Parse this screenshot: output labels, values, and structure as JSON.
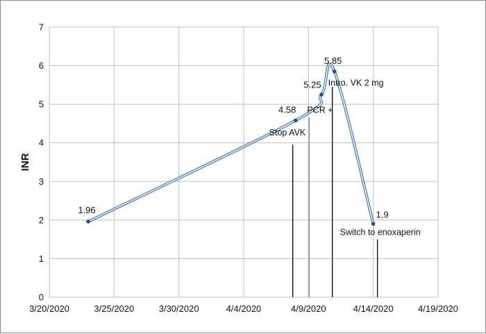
{
  "chart_data": {
    "type": "line",
    "title": "",
    "xlabel": "",
    "ylabel": "INR",
    "ylim": [
      0,
      7
    ],
    "yticks": [
      0,
      1,
      2,
      3,
      4,
      5,
      6,
      7
    ],
    "xticks": [
      "3/20/2020",
      "3/25/2020",
      "3/30/2020",
      "4/4/2020",
      "4/9/2020",
      "4/14/2020",
      "4/19/2020"
    ],
    "grid": true,
    "legend": "none",
    "colors": {
      "line": "#4a7ec2",
      "marker": "#1f4f99",
      "pcr": "#6b8fcf",
      "vline": "#111111",
      "grid": "#bfbfbf"
    },
    "series": [
      {
        "points": [
          {
            "x": "3/23/2020",
            "y": 1.96,
            "label": "1.96"
          },
          {
            "x": "4/8/2020",
            "y": 4.58,
            "label": "4.58"
          },
          {
            "x": "4/10/2020",
            "y": 5.25,
            "label": "5.25"
          },
          {
            "x": "4/11/2020",
            "y": 5.85,
            "label": "5.85"
          },
          {
            "x": "4/14/2020",
            "y": 1.9,
            "label": "1.9"
          }
        ]
      }
    ],
    "annotations": [
      {
        "text": "Stop AVK",
        "x": "4/8/2020",
        "color": "#111111"
      },
      {
        "text": "PCR  +",
        "x": "4/9/2020",
        "color": "#6b8fcf"
      },
      {
        "text": "Intro. VK 2 mg",
        "x": "4/11/2020",
        "color": "#111111"
      },
      {
        "text": "Switch to enoxaperin",
        "x": "4/14/2020",
        "color": "#111111"
      }
    ]
  }
}
